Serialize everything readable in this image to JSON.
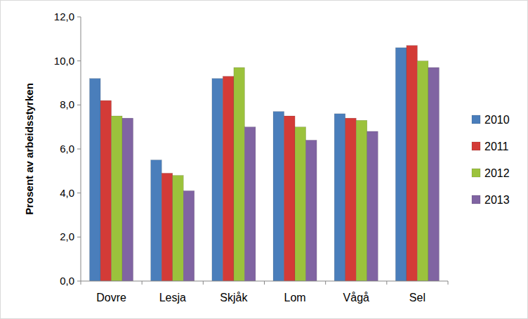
{
  "chart_data": {
    "type": "bar",
    "y_label": "Prosent av arbeidsstyrken",
    "categories": [
      "Dovre",
      "Lesja",
      "Skjåk",
      "Lom",
      "Vågå",
      "Sel"
    ],
    "series": [
      {
        "name": "2010",
        "color": "#4a7ebb",
        "values": [
          9.2,
          5.5,
          9.2,
          7.7,
          7.6,
          10.6
        ]
      },
      {
        "name": "2011",
        "color": "#d33b37",
        "values": [
          8.2,
          4.9,
          9.3,
          7.5,
          7.4,
          10.7
        ]
      },
      {
        "name": "2012",
        "color": "#9bc23c",
        "values": [
          7.5,
          4.8,
          9.7,
          7.0,
          7.3,
          10.0
        ]
      },
      {
        "name": "2013",
        "color": "#8064a2",
        "values": [
          7.4,
          4.1,
          7.0,
          6.4,
          6.8,
          9.7
        ]
      }
    ],
    "ylim": [
      0,
      12
    ],
    "yticks": [
      {
        "value": 0,
        "label": "0,0"
      },
      {
        "value": 2,
        "label": "2,0"
      },
      {
        "value": 4,
        "label": "4,0"
      },
      {
        "value": 6,
        "label": "6,0"
      },
      {
        "value": 8,
        "label": "8,0"
      },
      {
        "value": 10,
        "label": "10,0"
      },
      {
        "value": 12,
        "label": "12,0"
      }
    ],
    "grid": false,
    "legend": "right"
  }
}
